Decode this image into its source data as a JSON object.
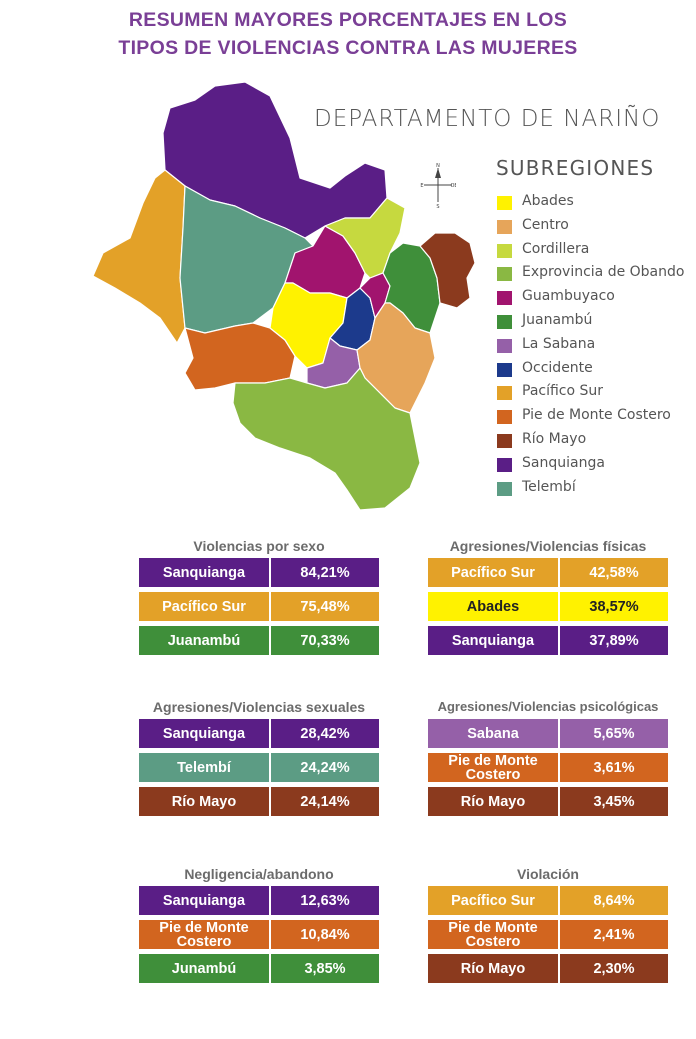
{
  "title": {
    "line1": "RESUMEN MAYORES PORCENTAJES EN LOS",
    "line2": "TIPOS DE VIOLENCIAS CONTRA LAS MUJERES"
  },
  "map": {
    "department": "DEPARTAMENTO DE NARIÑO",
    "legend_title": "SUBREGIONES",
    "compass": {
      "n": "N",
      "s": "S",
      "e": "E",
      "o": "OE"
    },
    "legend": [
      {
        "label": "Abades",
        "color": "#fff200"
      },
      {
        "label": "Centro",
        "color": "#e6a55a"
      },
      {
        "label": "Cordillera",
        "color": "#c6d93f"
      },
      {
        "label": "Exprovincia de Obando",
        "color": "#8ab843"
      },
      {
        "label": "Guambuyaco",
        "color": "#a1146e"
      },
      {
        "label": "Juanambú",
        "color": "#3f8f3a"
      },
      {
        "label": "La Sabana",
        "color": "#9560a8"
      },
      {
        "label": "Occidente",
        "color": "#1c3a8c"
      },
      {
        "label": "Pacífico Sur",
        "color": "#e3a128"
      },
      {
        "label": "Pie de Monte Costero",
        "color": "#d2651f"
      },
      {
        "label": "Río Mayo",
        "color": "#8b3a1e"
      },
      {
        "label": "Sanquianga",
        "color": "#5a1e86"
      },
      {
        "label": "Telembí",
        "color": "#5c9c84"
      }
    ]
  },
  "tables": [
    {
      "title": "Violencias por sexo",
      "rows": [
        {
          "name": "Sanquianga",
          "value": "84,21%",
          "color": "#5a1e86"
        },
        {
          "name": "Pacífico Sur",
          "value": "75,48%",
          "color": "#e3a128"
        },
        {
          "name": "Juanambú",
          "value": "70,33%",
          "color": "#3f8f3a"
        }
      ]
    },
    {
      "title": "Agresiones/Violencias físicas",
      "rows": [
        {
          "name": "Pacífico Sur",
          "value": "42,58%",
          "color": "#e3a128"
        },
        {
          "name": "Abades",
          "value": "38,57%",
          "color": "#fff200"
        },
        {
          "name": "Sanquianga",
          "value": "37,89%",
          "color": "#5a1e86"
        }
      ]
    },
    {
      "title": "Agresiones/Violencias sexuales",
      "rows": [
        {
          "name": "Sanquianga",
          "value": "28,42%",
          "color": "#5a1e86"
        },
        {
          "name": "Telembí",
          "value": "24,24%",
          "color": "#5c9c84"
        },
        {
          "name": "Río Mayo",
          "value": "24,14%",
          "color": "#8b3a1e"
        }
      ]
    },
    {
      "title": "Agresiones/Violencias psicológicas",
      "rows": [
        {
          "name": "Sabana",
          "value": "5,65%",
          "color": "#9560a8"
        },
        {
          "name": "Pie de Monte Costero",
          "value": "3,61%",
          "color": "#d2651f"
        },
        {
          "name": "Río Mayo",
          "value": "3,45%",
          "color": "#8b3a1e"
        }
      ]
    },
    {
      "title": "Negligencia/abandono",
      "rows": [
        {
          "name": "Sanquianga",
          "value": "12,63%",
          "color": "#5a1e86"
        },
        {
          "name": "Pie de Monte Costero",
          "value": "10,84%",
          "color": "#d2651f"
        },
        {
          "name": "Junambú",
          "value": "3,85%",
          "color": "#3f8f3a"
        }
      ]
    },
    {
      "title": "Violación",
      "rows": [
        {
          "name": "Pacífico Sur",
          "value": "8,64%",
          "color": "#e3a128"
        },
        {
          "name": "Pie de Monte Costero",
          "value": "2,41%",
          "color": "#d2651f"
        },
        {
          "name": "Río Mayo",
          "value": "2,30%",
          "color": "#8b3a1e"
        }
      ]
    }
  ]
}
